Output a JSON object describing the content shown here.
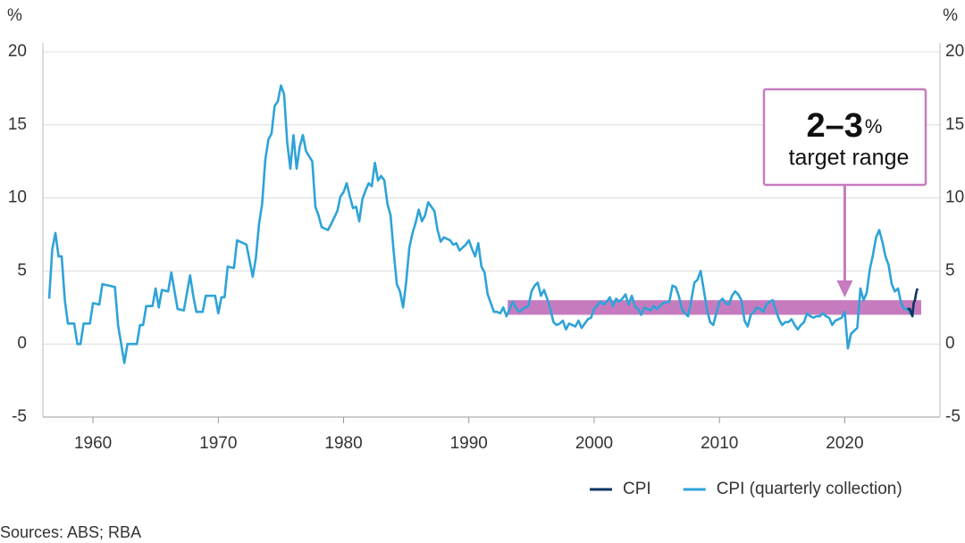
{
  "chart_data": {
    "type": "line",
    "unit_left": "%",
    "unit_right": "%",
    "source": "Sources: ABS; RBA",
    "xlim": [
      1956,
      2027.6
    ],
    "xticks": [
      1960,
      1970,
      1980,
      1990,
      2000,
      2010,
      2020
    ],
    "ylim": [
      -5,
      20
    ],
    "yticks": [
      -5,
      0,
      5,
      10,
      15,
      20
    ],
    "y2lim": [
      -5,
      20
    ],
    "y2ticks": [
      -5,
      0,
      5,
      10,
      15,
      20
    ],
    "grid": true,
    "target_band": {
      "x": [
        1993.1,
        2026.1
      ],
      "y": [
        2,
        3
      ],
      "color": "#c77bbf"
    },
    "annotation": {
      "big": "2–3",
      "unit": "%",
      "text": "target range",
      "arrow_x": 2020
    },
    "series": [
      {
        "name": "CPI (quarterly collection)",
        "color": "#2ea3d8",
        "x": [
          1956.5,
          1956.75,
          1957,
          1957.25,
          1957.5,
          1957.75,
          1958,
          1958.5,
          1958.75,
          1959,
          1959.25,
          1959.75,
          1960,
          1960.5,
          1960.75,
          1961.25,
          1961.75,
          1962,
          1962.25,
          1962.5,
          1962.75,
          1963.5,
          1963.75,
          1964,
          1964.25,
          1964.75,
          1965,
          1965.25,
          1965.5,
          1966,
          1966.25,
          1966.75,
          1967.25,
          1967.5,
          1967.75,
          1968,
          1968.25,
          1968.75,
          1969,
          1969.75,
          1970,
          1970.25,
          1970.5,
          1970.75,
          1971.25,
          1971.5,
          1972,
          1972.25,
          1972.5,
          1972.75,
          1973,
          1973.25,
          1973.5,
          1973.75,
          1974,
          1974.25,
          1974.5,
          1974.75,
          1975,
          1975.25,
          1975.5,
          1975.75,
          1976,
          1976.25,
          1976.5,
          1976.75,
          1977,
          1977.5,
          1977.75,
          1978,
          1978.25,
          1978.75,
          1979,
          1979.5,
          1979.75,
          1980,
          1980.25,
          1980.5,
          1980.75,
          1981,
          1981.25,
          1981.5,
          1981.75,
          1982,
          1982.25,
          1982.5,
          1982.75,
          1983,
          1983.25,
          1983.5,
          1983.75,
          1984,
          1984.25,
          1984.5,
          1984.75,
          1985,
          1985.25,
          1985.5,
          1985.75,
          1986,
          1986.25,
          1986.5,
          1986.75,
          1987,
          1987.25,
          1987.5,
          1987.75,
          1988,
          1988.5,
          1988.75,
          1989,
          1989.25,
          1989.75,
          1990,
          1990.25,
          1990.5,
          1990.75,
          1991,
          1991.25,
          1991.5,
          1991.75,
          1992,
          1992.25,
          1992.5,
          1992.75,
          1993,
          1993.25,
          1993.5,
          1993.75,
          1994,
          1994.5,
          1994.75,
          1995,
          1995.25,
          1995.5,
          1995.75,
          1996,
          1996.25,
          1996.5,
          1996.75,
          1997,
          1997.25,
          1997.5,
          1997.75,
          1998,
          1998.5,
          1998.75,
          1999,
          1999.5,
          1999.75,
          2000,
          2000.5,
          2000.75,
          2001,
          2001.25,
          2001.5,
          2001.75,
          2002,
          2002.25,
          2002.5,
          2002.75,
          2003,
          2003.25,
          2003.5,
          2003.75,
          2004,
          2004.5,
          2004.75,
          2005,
          2005.5,
          2006,
          2006.25,
          2006.5,
          2006.75,
          2007,
          2007.25,
          2007.5,
          2007.75,
          2008,
          2008.25,
          2008.5,
          2008.75,
          2009,
          2009.25,
          2009.5,
          2009.75,
          2010,
          2010.25,
          2010.5,
          2010.75,
          2011,
          2011.25,
          2011.5,
          2011.75,
          2012,
          2012.25,
          2012.5,
          2012.75,
          2013,
          2013.25,
          2013.5,
          2013.75,
          2014,
          2014.25,
          2014.5,
          2014.75,
          2015,
          2015.25,
          2015.5,
          2015.75,
          2016,
          2016.25,
          2016.5,
          2016.75,
          2017,
          2017.25,
          2017.5,
          2017.75,
          2018,
          2018.25,
          2018.5,
          2018.75,
          2019,
          2019.25,
          2019.5,
          2019.75,
          2020,
          2020.25,
          2020.5,
          2020.75,
          2021,
          2021.25,
          2021.5,
          2021.75,
          2022,
          2022.25,
          2022.5,
          2022.75,
          2023,
          2023.25,
          2023.5,
          2023.75,
          2024,
          2024.25,
          2024.5,
          2024.75,
          2025,
          2025.25,
          2025.5
        ],
        "values": [
          3.1,
          6.5,
          7.6,
          6.0,
          6.0,
          3.0,
          1.4,
          1.4,
          0,
          0,
          1.4,
          1.4,
          2.8,
          2.7,
          4.1,
          4.0,
          3.9,
          1.3,
          0,
          -1.3,
          0,
          0,
          1.3,
          1.3,
          2.6,
          2.6,
          3.8,
          2.5,
          3.7,
          3.6,
          4.9,
          2.4,
          2.3,
          3.5,
          4.7,
          3.3,
          2.2,
          2.2,
          3.3,
          3.3,
          2.1,
          3.2,
          3.2,
          5.3,
          5.2,
          7.1,
          6.9,
          6.8,
          5.7,
          4.6,
          5.9,
          8.2,
          9.6,
          12.6,
          14.0,
          14.4,
          16.3,
          16.6,
          17.7,
          17.1,
          13.8,
          12.0,
          14.3,
          12.0,
          13.5,
          14.3,
          13.2,
          12.5,
          9.4,
          8.8,
          8.0,
          7.8,
          8.2,
          9.1,
          10.1,
          10.4,
          11.0,
          10.1,
          9.3,
          9.4,
          8.4,
          9.9,
          10.5,
          11.0,
          10.8,
          12.4,
          11.2,
          11.5,
          11.2,
          9.6,
          8.8,
          6.3,
          4.1,
          3.6,
          2.5,
          4.3,
          6.6,
          7.6,
          8.3,
          9.2,
          8.4,
          8.8,
          9.7,
          9.4,
          9.1,
          7.8,
          7.0,
          7.3,
          7.1,
          6.8,
          6.9,
          6.4,
          6.8,
          7.1,
          6.5,
          6.0,
          6.9,
          5.3,
          4.9,
          3.4,
          2.8,
          2.2,
          2.2,
          2.1,
          2.5,
          1.9,
          2.4,
          2.9,
          2.5,
          2.2,
          2.5,
          2.6,
          3.6,
          4.0,
          4.2,
          3.3,
          3.7,
          3.1,
          2.4,
          1.5,
          1.3,
          1.4,
          1.6,
          1.0,
          1.4,
          1.2,
          1.6,
          1.1,
          1.7,
          1.8,
          2.4,
          2.9,
          2.7,
          2.9,
          3.2,
          2.6,
          3.1,
          2.9,
          3.1,
          3.4,
          2.7,
          3.3,
          2.6,
          2.4,
          2.0,
          2.5,
          2.3,
          2.6,
          2.4,
          2.8,
          2.9,
          4.0,
          3.9,
          3.3,
          2.4,
          2.1,
          1.9,
          3.0,
          4.2,
          4.4,
          5.0,
          3.7,
          2.4,
          1.5,
          1.3,
          2.1,
          2.9,
          3.1,
          2.8,
          2.7,
          3.3,
          3.6,
          3.4,
          3.0,
          1.6,
          1.2,
          2.0,
          2.2,
          2.5,
          2.4,
          2.2,
          2.7,
          2.9,
          3.0,
          2.3,
          1.7,
          1.3,
          1.5,
          1.5,
          1.7,
          1.3,
          1.0,
          1.3,
          1.5,
          2.1,
          1.9,
          1.8,
          1.9,
          1.9,
          2.1,
          1.9,
          1.8,
          1.3,
          1.6,
          1.7,
          1.8,
          2.2,
          -0.3,
          0.7,
          0.9,
          1.1,
          3.8,
          3.0,
          3.5,
          5.1,
          6.1,
          7.3,
          7.8,
          7.0,
          6.0,
          5.4,
          4.1,
          3.6,
          3.8,
          2.8,
          2.4,
          2.4,
          2.1,
          2.1
        ]
      },
      {
        "name": "CPI",
        "color": "#0c3563",
        "x": [
          2025.0,
          2025.1,
          2025.2,
          2025.3,
          2025.4,
          2025.5,
          2025.6,
          2025.7,
          2025.8
        ],
        "values": [
          2.4,
          2.4,
          2.4,
          2.1,
          1.9,
          2.8,
          3.0,
          3.5,
          3.8
        ]
      }
    ],
    "legend_order": [
      1,
      0
    ]
  }
}
